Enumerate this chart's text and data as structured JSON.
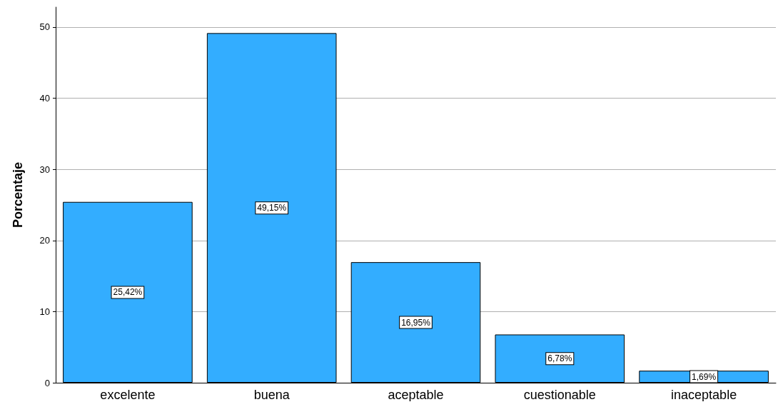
{
  "chart_data": {
    "type": "bar",
    "ylabel": "Porcentaje",
    "categories": [
      "excelente",
      "buena",
      "aceptable",
      "cuestionable",
      "inaceptable"
    ],
    "values": [
      25.42,
      49.15,
      16.95,
      6.78,
      1.69
    ],
    "value_labels": [
      "25,42%",
      "49,15%",
      "16,95%",
      "6,78%",
      "1,69%"
    ],
    "color": "#33adff",
    "ylim": [
      0,
      52.8
    ],
    "yticks": [
      0,
      10,
      20,
      30,
      40,
      50
    ],
    "grid": "y"
  }
}
